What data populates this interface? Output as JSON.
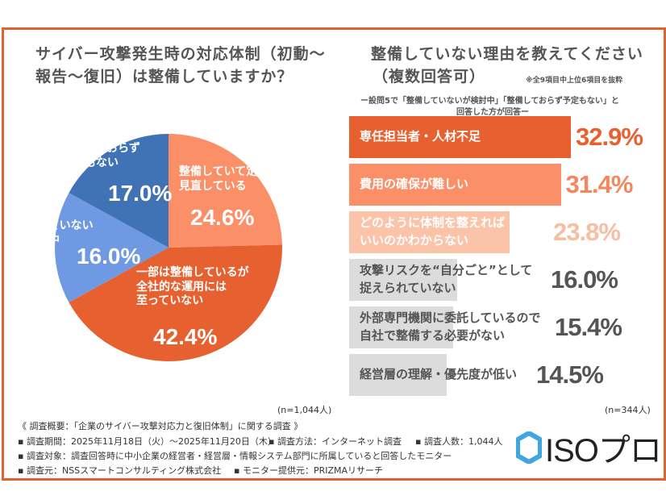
{
  "colors": {
    "border": "#e2622f",
    "orange": "#e6612f",
    "peach": "#fb8f67",
    "light_peach": "#fbc4a9",
    "gray": "#dcdcdc",
    "blue_dark": "#3f73b6",
    "blue_light": "#6f99e2"
  },
  "chart_data": [
    {
      "type": "pie",
      "title": "サイバー攻撃発生時の対応体制（初動〜報告〜復旧）は整備していますか？",
      "title_lines": [
        "サイバー攻撃発生時の対応体制（初動〜",
        "報告〜復旧）は整備していますか？"
      ],
      "start": "top",
      "direction": "clockwise",
      "slices": [
        {
          "label_lines": [
            "整備していて定期的に",
            "見直している"
          ],
          "value": 24.6,
          "value_label": "24.6%",
          "color": "#fb8f67"
        },
        {
          "label_lines": [
            "一部は整備しているが",
            "全社的な運用には",
            "至っていない"
          ],
          "value": 42.4,
          "value_label": "42.4%",
          "color": "#e6612f"
        },
        {
          "label_lines": [
            "整備していない",
            "が検討中"
          ],
          "value": 16.0,
          "value_label": "16.0%",
          "color": "#6f99e2"
        },
        {
          "label_lines": [
            "整備しておらず",
            "予定もない"
          ],
          "value": 17.0,
          "value_label": "17.0%",
          "color": "#3f73b6"
        }
      ],
      "n_label": "(n=1,044人)"
    },
    {
      "type": "bar",
      "orientation": "horizontal",
      "title_lines": [
        "整備していない理由を教えてください",
        "（複数回答可）"
      ],
      "note": "※全9項目中上位6項目を抜粋",
      "subtitle_lines": [
        "ー設問5で「整備していないが検討中」「整備しておらず予定もない」と",
        "回答した方が回答ー"
      ],
      "bars": [
        {
          "label_lines": [
            "専任担当者・人材不足"
          ],
          "value": 32.9,
          "value_label": "32.9%",
          "color": "#e6612f",
          "text_color": "#e6612f"
        },
        {
          "label_lines": [
            "費用の確保が難しい"
          ],
          "value": 31.4,
          "value_label": "31.4%",
          "color": "#fb8f67",
          "text_color": "#f5875f"
        },
        {
          "label_lines": [
            "どのように体制を整えれば",
            "いいのかわからない"
          ],
          "value": 23.8,
          "value_label": "23.8%",
          "color": "#fbc4a9",
          "text_color": "#f8bea3"
        },
        {
          "label_lines": [
            "攻撃リスクを“自分ごと”として",
            "捉えられていない"
          ],
          "value": 16.0,
          "value_label": "16.0%",
          "color": "#dcdcdc",
          "text_color": "#555555"
        },
        {
          "label_lines": [
            "外部専門機関に委託しているので",
            "自社で整備する必要がない"
          ],
          "value": 15.4,
          "value_label": "15.4%",
          "color": "#dcdcdc",
          "text_color": "#555555"
        },
        {
          "label_lines": [
            "経営層の理解・優先度が低い"
          ],
          "value": 14.5,
          "value_label": "14.5%",
          "color": "#dcdcdc",
          "text_color": "#555555"
        }
      ],
      "n_label": "(n=344人)"
    }
  ],
  "footer": {
    "lines": [
      "《 調査概要：「企業のサイバー攻撃対応力と復旧体制」に関する調査 》",
      "▪ 調査期間：2025年11月18日（火）〜2025年11月20日（木）",
      "▪ 調査方法：インターネット調査",
      "▪ 調査人数：1,044人",
      "▪ 調査対象：調査回答時に中小企業の経営者・経営層・情報システム部門に所属していると回答したモニター",
      "▪ 調査元：NSSスマートコンサルティング株式会社",
      "▪ モニター提供元：PRIZMAリサーチ"
    ],
    "logo": "ISOプロ"
  }
}
